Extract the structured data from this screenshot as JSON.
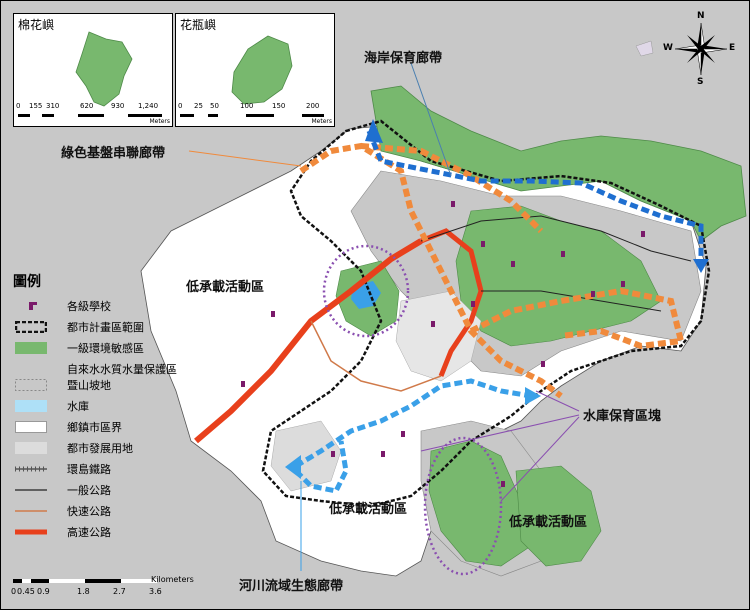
{
  "insets": [
    {
      "title": "棉花嶼",
      "scale_ticks": [
        "0",
        "155",
        "310",
        "620",
        "930",
        "1,240"
      ],
      "unit": "Meters"
    },
    {
      "title": "花瓶嶼",
      "scale_ticks": [
        "0",
        "25",
        "50",
        "100",
        "150",
        "200"
      ],
      "unit": "Meters"
    }
  ],
  "north_arrow": {
    "n": "N",
    "s": "S",
    "e": "E",
    "w": "W"
  },
  "legend": {
    "title": "圖例",
    "items": [
      {
        "label": "各級學校"
      },
      {
        "label": "都市計畫區範圍"
      },
      {
        "label": "一級環境敏感區"
      },
      {
        "label": "自來水水質水量保護區"
      },
      {
        "label": "暨山坡地"
      },
      {
        "label": "水庫"
      },
      {
        "label": "鄉鎮市區界"
      },
      {
        "label": "都市發展用地"
      },
      {
        "label": "環島鐵路"
      },
      {
        "label": "一般公路"
      },
      {
        "label": "快速公路"
      },
      {
        "label": "高速公路"
      }
    ]
  },
  "scale_bar": {
    "ticks": [
      "0",
      "0.45",
      "0.9",
      "1.8",
      "2.7",
      "3.6"
    ],
    "unit": "Kilometers"
  },
  "annotations": {
    "coastal": "海岸保育廊帶",
    "green": "綠色基盤串聯廊帶",
    "low_west": "低承載活動區",
    "reservoir": "水庫保育區塊",
    "low_south": "低承載活動區",
    "low_southeast": "低承載活動區",
    "river": "河川流域生態廊帶"
  },
  "colors": {
    "sensitive_green": "#78b86e",
    "orange_corridor": "#f08a3c",
    "blue_corridor": "#1f6fd0",
    "reservoir_blue": "#3aa0e8",
    "highway_red": "#e8401c",
    "school_purple": "#7a1a6a",
    "protection_grey": "#c8c8c8",
    "urban_light": "#dcdcdc",
    "ellipse_purple": "#8a4fb0"
  }
}
